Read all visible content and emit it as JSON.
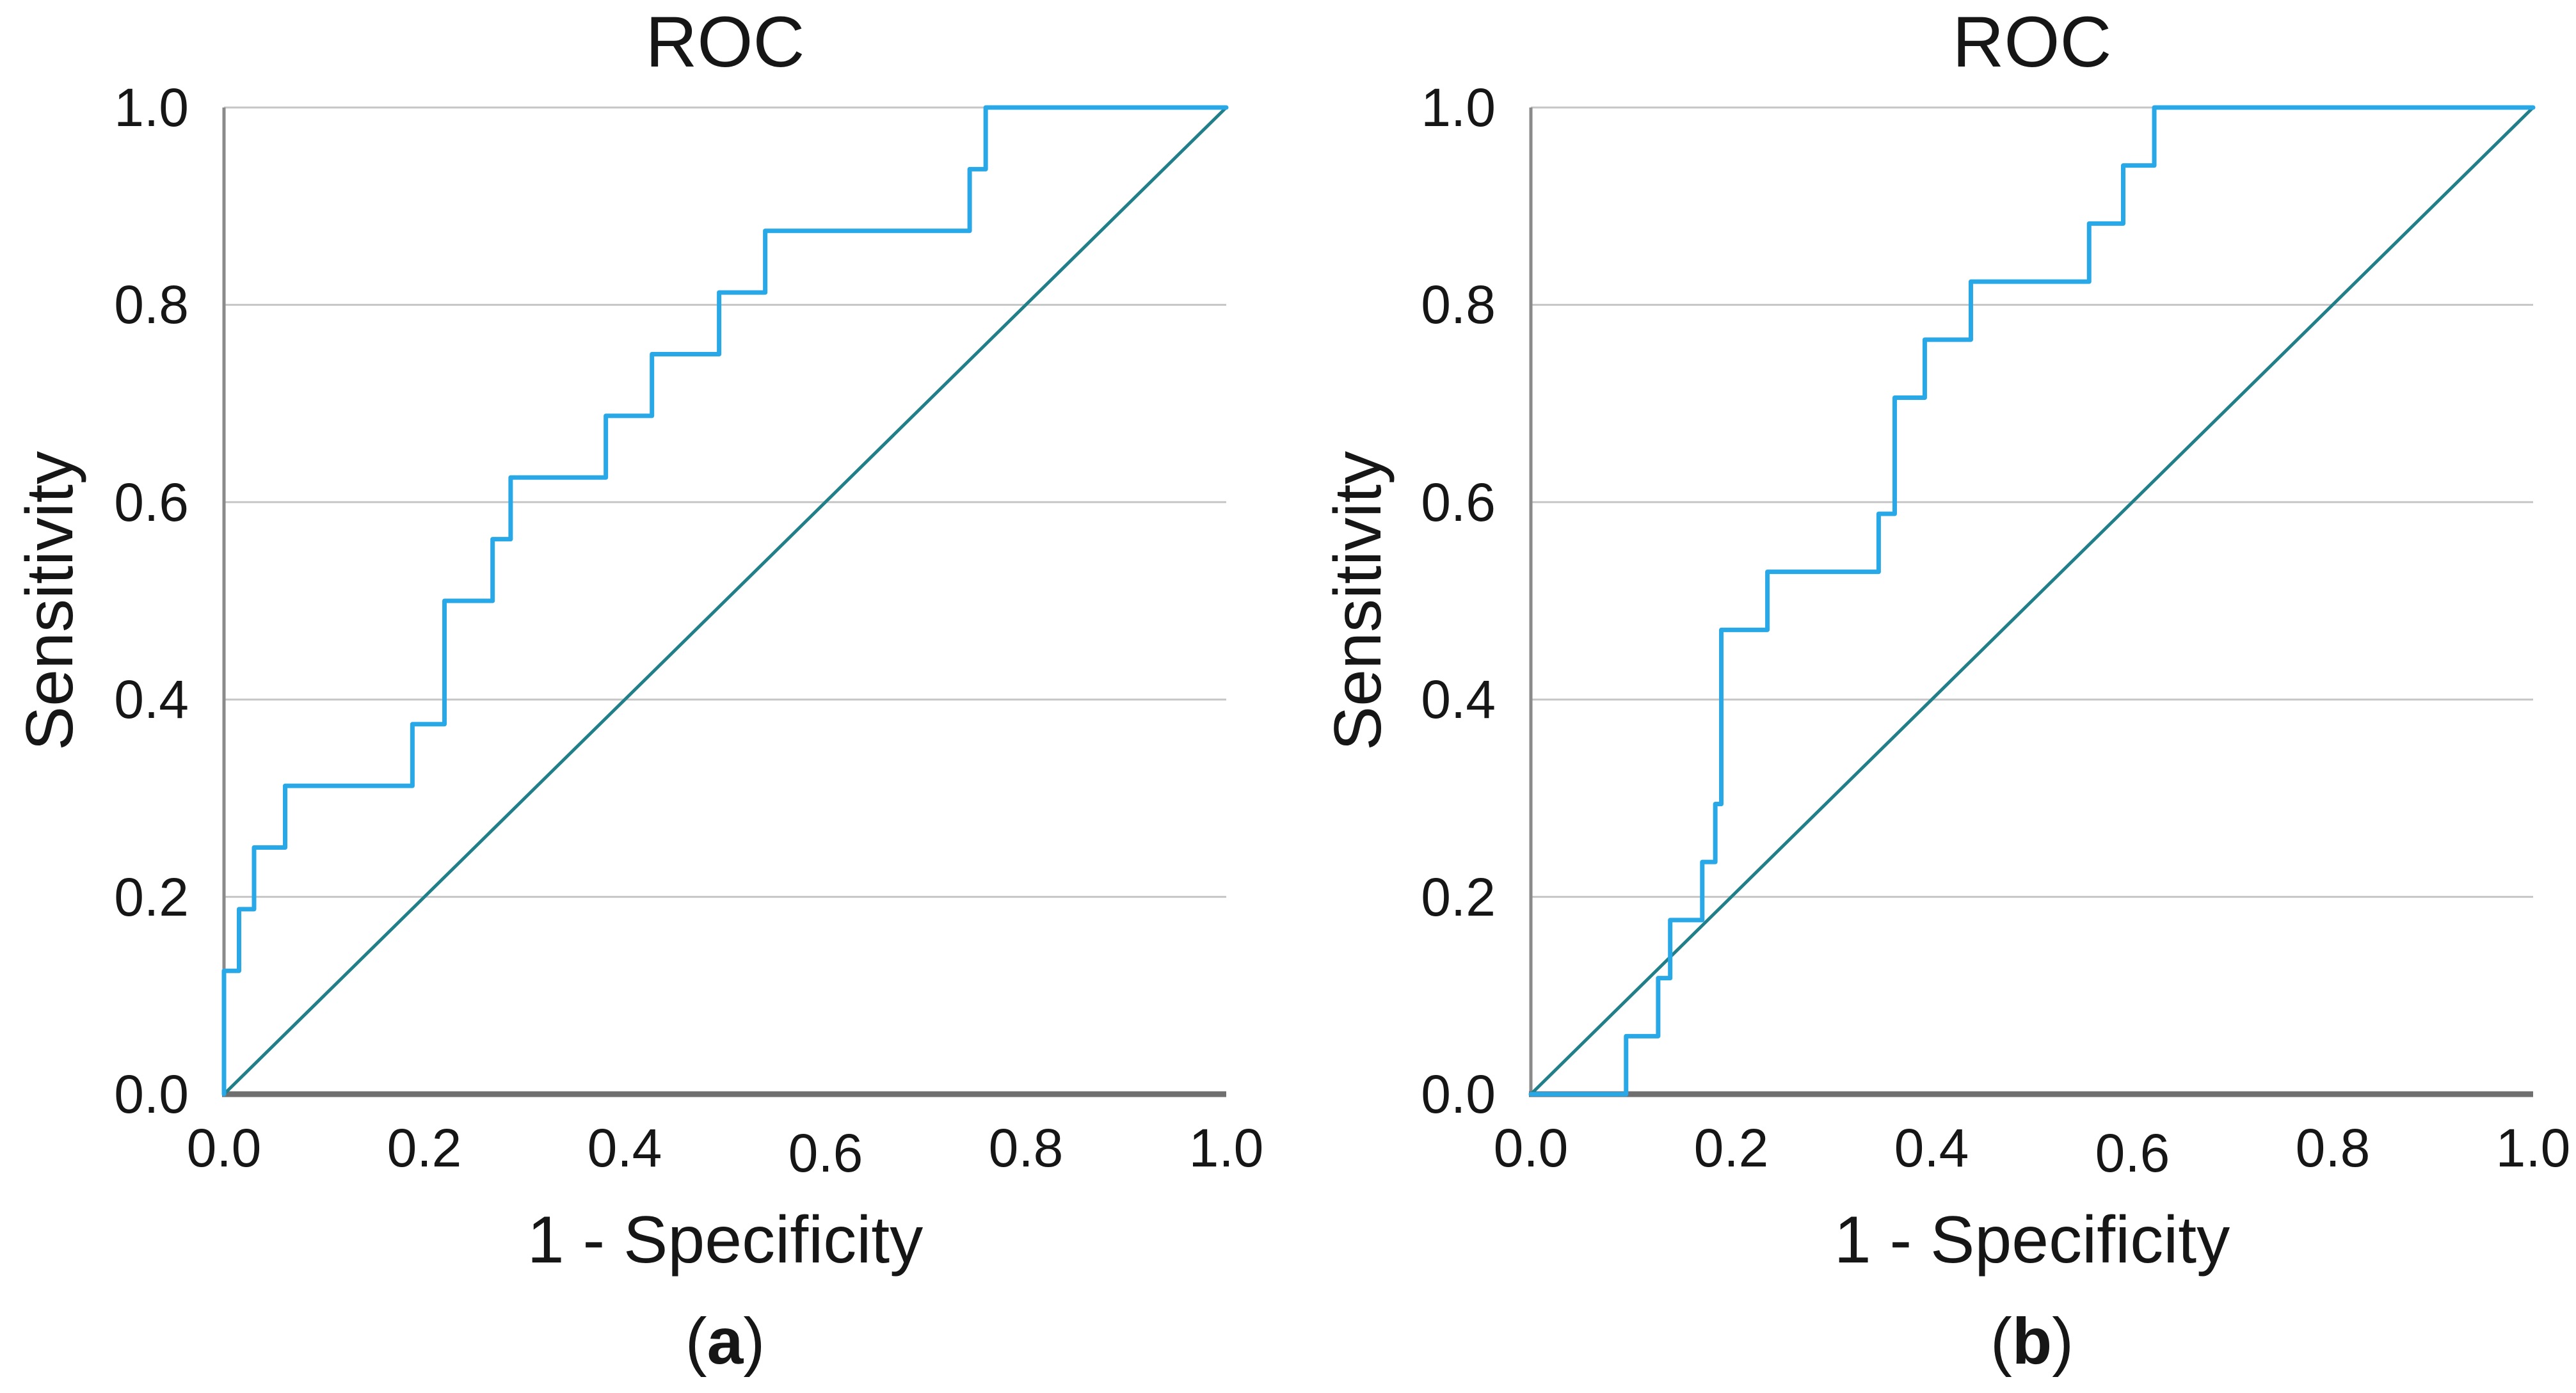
{
  "figure": {
    "background": "#ffffff"
  },
  "colors": {
    "roc_curve": "#29a8e8",
    "reference_line": "#217f8a",
    "gridline": "#c6c6c6",
    "y_axis": "#8a8a8a",
    "x_axis": "#6f6f6f",
    "text": "#161616"
  },
  "panels": [
    {
      "id": "a",
      "title": "ROC",
      "xlabel": "1 - Specificity",
      "ylabel": "Sensitivity",
      "caption_open": "(",
      "caption_letter": "a",
      "caption_close": ")",
      "xticks": [
        "0.0",
        "0.2",
        "0.4",
        "0.6",
        "0.8",
        "1.0"
      ],
      "yticks": [
        "1.0",
        "0.8",
        "0.6",
        "0.4",
        "0.2",
        "0.0"
      ]
    },
    {
      "id": "b",
      "title": "ROC",
      "xlabel": "1 - Specificity",
      "ylabel": "Sensitivity",
      "caption_open": "(",
      "caption_letter": "b",
      "caption_close": ")",
      "xticks": [
        "0.0",
        "0.2",
        "0.4",
        "0.6",
        "0.8",
        "1.0"
      ],
      "yticks": [
        "1.0",
        "0.8",
        "0.6",
        "0.4",
        "0.2",
        "0.0"
      ]
    }
  ],
  "chart_data": [
    {
      "type": "line",
      "panel": "a",
      "title": "ROC",
      "xlabel": "1 - Specificity",
      "ylabel": "Sensitivity",
      "xlim": [
        0,
        1
      ],
      "ylim": [
        0,
        1
      ],
      "grid": "horizontal",
      "gridline_values": [
        0.2,
        0.4,
        0.6,
        0.8,
        1.0
      ],
      "xtick_values": [
        0,
        0.2,
        0.4,
        0.6,
        0.8,
        1.0
      ],
      "ytick_values": [
        0,
        0.2,
        0.4,
        0.6,
        0.8,
        1.0
      ],
      "legend": "none",
      "series": [
        {
          "name": "ROC curve",
          "style": "step",
          "color": "#29a8e8",
          "points": [
            [
              0,
              0
            ],
            [
              0,
              0.125
            ],
            [
              0.015,
              0.125
            ],
            [
              0.015,
              0.1875
            ],
            [
              0.03,
              0.1875
            ],
            [
              0.03,
              0.25
            ],
            [
              0.061,
              0.25
            ],
            [
              0.061,
              0.3125
            ],
            [
              0.188,
              0.3125
            ],
            [
              0.188,
              0.375
            ],
            [
              0.22,
              0.375
            ],
            [
              0.22,
              0.5
            ],
            [
              0.268,
              0.5
            ],
            [
              0.268,
              0.5625
            ],
            [
              0.286,
              0.5625
            ],
            [
              0.286,
              0.625
            ],
            [
              0.381,
              0.625
            ],
            [
              0.381,
              0.6875
            ],
            [
              0.427,
              0.6875
            ],
            [
              0.427,
              0.75
            ],
            [
              0.494,
              0.75
            ],
            [
              0.494,
              0.8125
            ],
            [
              0.54,
              0.8125
            ],
            [
              0.54,
              0.875
            ],
            [
              0.744,
              0.875
            ],
            [
              0.744,
              0.9375
            ],
            [
              0.76,
              0.9375
            ],
            [
              0.76,
              1.0
            ],
            [
              1.0,
              1.0
            ]
          ]
        },
        {
          "name": "Chance diagonal",
          "style": "line",
          "color": "#217f8a",
          "points": [
            [
              0,
              0
            ],
            [
              1,
              1
            ]
          ]
        }
      ]
    },
    {
      "type": "line",
      "panel": "b",
      "title": "ROC",
      "xlabel": "1 - Specificity",
      "ylabel": "Sensitivity",
      "xlim": [
        0,
        1
      ],
      "ylim": [
        0,
        1
      ],
      "grid": "horizontal",
      "gridline_values": [
        0.2,
        0.4,
        0.6,
        0.8,
        1.0
      ],
      "xtick_values": [
        0,
        0.2,
        0.4,
        0.6,
        0.8,
        1.0
      ],
      "ytick_values": [
        0,
        0.2,
        0.4,
        0.6,
        0.8,
        1.0
      ],
      "legend": "none",
      "series": [
        {
          "name": "ROC curve",
          "style": "step",
          "color": "#29a8e8",
          "points": [
            [
              0,
              0
            ],
            [
              0.095,
              0
            ],
            [
              0.095,
              0.0588
            ],
            [
              0.127,
              0.0588
            ],
            [
              0.127,
              0.1176
            ],
            [
              0.139,
              0.1176
            ],
            [
              0.139,
              0.1765
            ],
            [
              0.171,
              0.1765
            ],
            [
              0.171,
              0.2353
            ],
            [
              0.184,
              0.2353
            ],
            [
              0.184,
              0.2941
            ],
            [
              0.19,
              0.2941
            ],
            [
              0.19,
              0.4706
            ],
            [
              0.236,
              0.4706
            ],
            [
              0.236,
              0.5294
            ],
            [
              0.347,
              0.5294
            ],
            [
              0.347,
              0.5882
            ],
            [
              0.363,
              0.5882
            ],
            [
              0.363,
              0.7059
            ],
            [
              0.393,
              0.7059
            ],
            [
              0.393,
              0.7647
            ],
            [
              0.439,
              0.7647
            ],
            [
              0.439,
              0.8235
            ],
            [
              0.557,
              0.8235
            ],
            [
              0.557,
              0.8824
            ],
            [
              0.591,
              0.8824
            ],
            [
              0.591,
              0.9412
            ],
            [
              0.622,
              0.9412
            ],
            [
              0.622,
              1.0
            ],
            [
              1.0,
              1.0
            ]
          ]
        },
        {
          "name": "Chance diagonal",
          "style": "line",
          "color": "#217f8a",
          "points": [
            [
              0,
              0
            ],
            [
              1,
              1
            ]
          ]
        }
      ]
    }
  ]
}
